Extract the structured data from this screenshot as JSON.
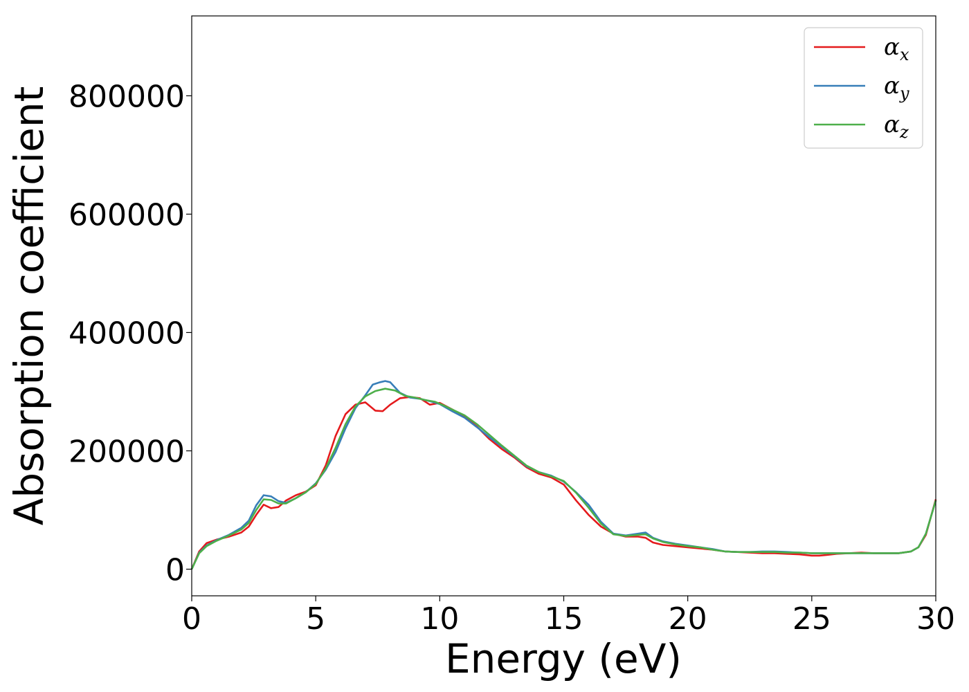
{
  "chart_data": {
    "type": "line",
    "xlabel": "Energy (eV)",
    "ylabel": "Absorption coefficient",
    "xlim": [
      0,
      30
    ],
    "ylim": [
      -45000,
      935000
    ],
    "xticks": [
      0,
      5,
      10,
      15,
      20,
      25,
      30
    ],
    "yticks": [
      0,
      200000,
      400000,
      600000,
      800000
    ],
    "grid": false,
    "legend_position": "top-right",
    "series": [
      {
        "name": "α",
        "subscript": "x",
        "color": "#e41a1c",
        "x": [
          0,
          0.3,
          0.6,
          1,
          1.5,
          2,
          2.3,
          2.6,
          2.9,
          3.2,
          3.5,
          3.8,
          4.2,
          4.6,
          5,
          5.4,
          5.8,
          6.2,
          6.6,
          7,
          7.4,
          7.7,
          8,
          8.4,
          8.8,
          9.2,
          9.6,
          10,
          10.5,
          11,
          11.5,
          12,
          12.5,
          13,
          13.5,
          14,
          14.5,
          15,
          15.5,
          16,
          16.5,
          17,
          17.5,
          18,
          18.3,
          18.6,
          19,
          19.5,
          20,
          20.5,
          21,
          21.5,
          22,
          22.5,
          23,
          23.5,
          24,
          24.5,
          25,
          25.3,
          25.6,
          26,
          26.5,
          27,
          27.5,
          28,
          28.5,
          29,
          29.3,
          29.6,
          30
        ],
        "y": [
          0,
          30000,
          44000,
          50000,
          55000,
          62000,
          72000,
          92000,
          109000,
          103000,
          105000,
          116000,
          125000,
          131000,
          142000,
          175000,
          225000,
          262000,
          278000,
          282000,
          268000,
          267000,
          278000,
          289000,
          291000,
          289000,
          278000,
          281000,
          270000,
          258000,
          241000,
          220000,
          203000,
          189000,
          172000,
          161000,
          155000,
          143000,
          116000,
          92000,
          72000,
          60000,
          55000,
          55000,
          53000,
          45000,
          41000,
          39000,
          37000,
          35000,
          33000,
          30000,
          29000,
          28000,
          27000,
          27000,
          26000,
          25000,
          23000,
          23000,
          24000,
          26000,
          27000,
          28000,
          27000,
          27000,
          27000,
          30000,
          37000,
          58000,
          118000
        ]
      },
      {
        "name": "α",
        "subscript": "y",
        "color": "#377eb8",
        "x": [
          0,
          0.3,
          0.6,
          1,
          1.5,
          2,
          2.3,
          2.6,
          2.9,
          3.2,
          3.5,
          3.8,
          4.2,
          4.6,
          5,
          5.4,
          5.8,
          6.2,
          6.6,
          7,
          7.3,
          7.6,
          7.8,
          8,
          8.4,
          8.8,
          9.2,
          9.6,
          10,
          10.5,
          11,
          11.5,
          12,
          12.5,
          13,
          13.5,
          14,
          14.5,
          15,
          15.5,
          16,
          16.5,
          17,
          17.5,
          18,
          18.3,
          18.6,
          19,
          19.5,
          20,
          20.5,
          21,
          21.5,
          22,
          22.5,
          23,
          23.5,
          24,
          24.5,
          25,
          25.5,
          26,
          26.5,
          27,
          27.5,
          28,
          28.5,
          29,
          29.3,
          29.6,
          30
        ],
        "y": [
          0,
          28000,
          40000,
          49000,
          58000,
          70000,
          82000,
          108000,
          125000,
          123000,
          115000,
          112000,
          120000,
          130000,
          145000,
          168000,
          198000,
          238000,
          272000,
          294000,
          312000,
          316000,
          318000,
          316000,
          298000,
          290000,
          288000,
          284000,
          279000,
          267000,
          256000,
          240000,
          223000,
          207000,
          191000,
          174000,
          164000,
          158000,
          148000,
          130000,
          109000,
          80000,
          60000,
          57000,
          60000,
          62000,
          53000,
          47000,
          43000,
          40000,
          37000,
          34000,
          30000,
          29000,
          29000,
          30000,
          30000,
          29000,
          28000,
          27000,
          27000,
          27000,
          27000,
          27000,
          27000,
          27000,
          27000,
          30000,
          37000,
          60000,
          116000
        ]
      },
      {
        "name": "α",
        "subscript": "z",
        "color": "#4daf4a",
        "x": [
          0,
          0.3,
          0.6,
          1,
          1.5,
          2,
          2.3,
          2.6,
          2.9,
          3.2,
          3.5,
          3.8,
          4.2,
          4.6,
          5,
          5.4,
          5.8,
          6.2,
          6.6,
          7,
          7.4,
          7.8,
          8.2,
          8.6,
          9,
          9.4,
          9.8,
          10.2,
          10.6,
          11,
          11.5,
          12,
          12.5,
          13,
          13.5,
          14,
          14.5,
          15,
          15.5,
          16,
          16.5,
          17,
          17.5,
          18,
          18.3,
          18.6,
          19,
          19.5,
          20,
          20.5,
          21,
          21.5,
          22,
          22.5,
          23,
          23.5,
          24,
          24.5,
          25,
          25.5,
          26,
          26.5,
          27,
          27.5,
          28,
          28.5,
          29,
          29.3,
          29.6,
          30
        ],
        "y": [
          0,
          27000,
          39000,
          48000,
          57000,
          67000,
          78000,
          100000,
          118000,
          117000,
          111000,
          111000,
          120000,
          130000,
          144000,
          170000,
          205000,
          245000,
          275000,
          292000,
          301000,
          305000,
          302000,
          293000,
          290000,
          286000,
          283000,
          276000,
          268000,
          260000,
          245000,
          227000,
          209000,
          192000,
          175000,
          164000,
          157000,
          149000,
          129000,
          104000,
          77000,
          59000,
          56000,
          58000,
          59000,
          52000,
          46000,
          42000,
          39000,
          37000,
          33000,
          30000,
          29000,
          29000,
          29000,
          29000,
          28000,
          28000,
          27000,
          27000,
          27000,
          27000,
          27000,
          27000,
          27000,
          27000,
          30000,
          37000,
          60000,
          116000
        ]
      }
    ]
  }
}
